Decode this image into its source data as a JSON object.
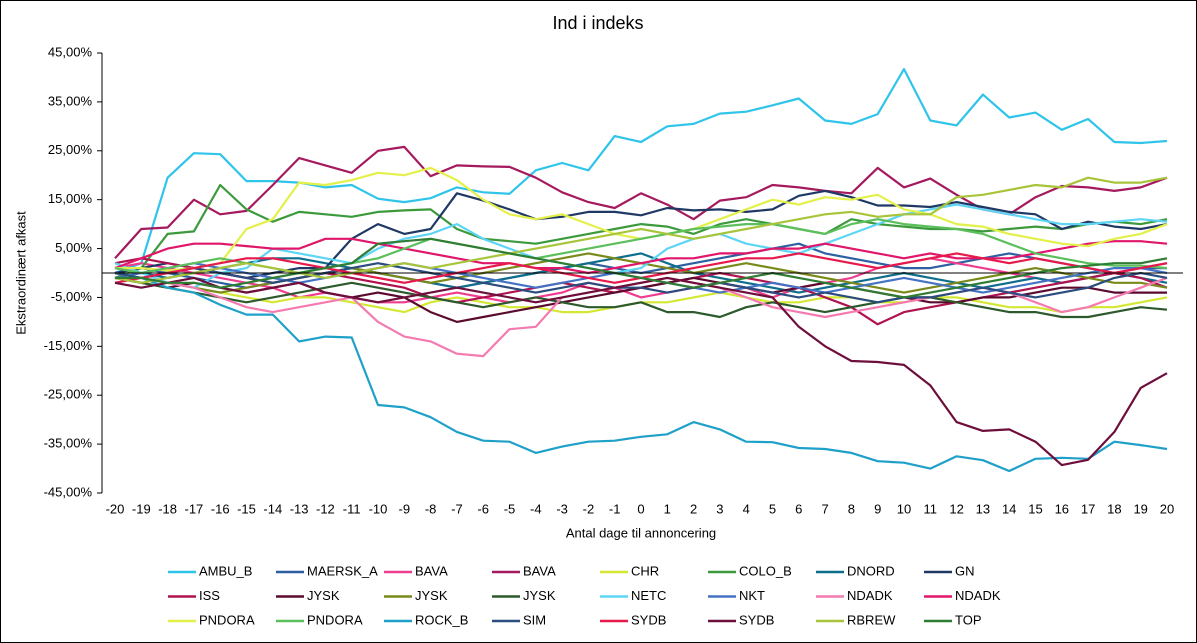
{
  "chart_data": {
    "type": "line",
    "title": "Ind i indeks",
    "x_label": "Antal dage til annoncering",
    "y_label": "Ekstraordinært afkast",
    "x": [
      -20,
      -19,
      -18,
      -17,
      -16,
      -15,
      -14,
      -13,
      -12,
      -11,
      -10,
      -9,
      -8,
      -7,
      -6,
      -5,
      -4,
      -3,
      -2,
      -1,
      0,
      1,
      2,
      3,
      4,
      5,
      6,
      7,
      8,
      9,
      10,
      11,
      12,
      13,
      14,
      15,
      16,
      17,
      18,
      19,
      20
    ],
    "xlim": [
      -20,
      20
    ],
    "ylim": [
      -45,
      45
    ],
    "yticks": [
      {
        "value": 45,
        "label": "45,00%"
      },
      {
        "value": 35,
        "label": "35,00%"
      },
      {
        "value": 25,
        "label": "25,00%"
      },
      {
        "value": 15,
        "label": "15,00%"
      },
      {
        "value": 5,
        "label": "5,00%"
      },
      {
        "value": -5,
        "label": "-5,00%"
      },
      {
        "value": -15,
        "label": "-15,00%"
      },
      {
        "value": -25,
        "label": "-25,00%"
      },
      {
        "value": -35,
        "label": "-35,00%"
      },
      {
        "value": -45,
        "label": "-45,00%"
      }
    ],
    "series": [
      {
        "name": "AMBU_B",
        "color": "#2fc4ea",
        "values": [
          0,
          2,
          19.5,
          24.5,
          24.3,
          18.8,
          18.8,
          18.5,
          17.5,
          18,
          15.2,
          14.5,
          15.3,
          17.5,
          16.5,
          16.2,
          21,
          22.5,
          21,
          28,
          26.8,
          30,
          30.5,
          32.6,
          33,
          34.3,
          35.7,
          31.2,
          30.5,
          32.5,
          41.7,
          31.2,
          30.2,
          36.5,
          31.8,
          32.8,
          29.3,
          31.5,
          26.8,
          26.6,
          27
        ]
      },
      {
        "name": "MAERSK_A",
        "color": "#2e5fa0",
        "values": [
          0,
          1,
          0,
          -1,
          -2,
          -3,
          -2,
          -1,
          0,
          1,
          0,
          -1,
          -2,
          -3,
          -2,
          -1,
          0,
          1,
          2,
          1,
          0,
          1,
          2,
          3,
          4,
          5,
          6,
          4,
          3,
          2,
          1,
          1,
          2,
          3,
          4,
          3,
          2,
          1,
          0,
          1,
          1
        ]
      },
      {
        "name": "BAVA",
        "color": "#ee3d8f",
        "values": [
          1,
          2,
          1,
          0,
          -1,
          -2,
          -3,
          -5,
          -4,
          -5,
          -6,
          -6,
          -5,
          -4,
          -5,
          -6,
          -5,
          -4,
          -2,
          -3,
          -5,
          -4,
          -3,
          -2,
          -3,
          -5,
          -3,
          -2,
          -1,
          1,
          2,
          3,
          2,
          1,
          0,
          -1,
          -2,
          -1,
          0,
          1,
          2
        ]
      },
      {
        "name": "BAVA",
        "color": "#a5195e",
        "values": [
          3,
          9,
          9.3,
          15,
          12,
          12.7,
          18,
          23.5,
          22,
          20.5,
          25,
          25.8,
          19.8,
          22,
          21.8,
          21.7,
          19.5,
          16.5,
          14.5,
          13.3,
          16.3,
          14,
          11,
          14.8,
          15.5,
          18,
          17.5,
          16.8,
          16.3,
          21.5,
          17.5,
          19.3,
          16,
          13,
          12,
          15.5,
          17.8,
          17.5,
          16.8,
          17.5,
          19.5
        ]
      },
      {
        "name": "CHR",
        "color": "#d4e833",
        "values": [
          0,
          -1,
          -2,
          -3,
          -4,
          -5,
          -6,
          -5,
          -5,
          -6,
          -7,
          -8,
          -6,
          -5,
          -6,
          -7,
          -7,
          -8,
          -8,
          -7,
          -6,
          -6,
          -5,
          -4,
          -5,
          -6,
          -6,
          -5,
          -5,
          -6,
          -6,
          -5,
          -5,
          -6,
          -7,
          -7,
          -8,
          -7,
          -7,
          -6,
          -5
        ]
      },
      {
        "name": "COLO_B",
        "color": "#3c9a3c",
        "values": [
          -1,
          1,
          8,
          8.5,
          18,
          13,
          10.5,
          12.5,
          12,
          11.5,
          12.5,
          12.8,
          13,
          9,
          7,
          6.5,
          6,
          7,
          8,
          9,
          10,
          9.5,
          8,
          10,
          11,
          10,
          9,
          8,
          11,
          10,
          9.5,
          9,
          9,
          8.5,
          9,
          9.5,
          9,
          10,
          10.5,
          10,
          11
        ]
      },
      {
        "name": "DNORD",
        "color": "#0f6e8c",
        "values": [
          1,
          0,
          -1,
          0,
          1,
          2,
          3,
          3,
          2,
          1,
          0,
          -1,
          -2,
          -3,
          -2,
          -1,
          0,
          1,
          2,
          3,
          4,
          2,
          0,
          -1,
          -2,
          -3,
          -4,
          -3,
          -2,
          -1,
          0,
          -1,
          -2,
          -3,
          -2,
          -1,
          -2,
          -1,
          0,
          -1,
          -2
        ]
      },
      {
        "name": "GN",
        "color": "#1f3864",
        "values": [
          0,
          1,
          2,
          1,
          0,
          -1,
          0,
          1,
          1,
          7,
          10,
          8,
          9,
          16.3,
          14.8,
          13,
          11,
          11.5,
          12.5,
          12.5,
          11.8,
          13.3,
          12.8,
          13,
          12.5,
          13,
          15.8,
          16.8,
          15.5,
          13.8,
          13.8,
          13.5,
          14.5,
          13.5,
          12.5,
          12,
          9,
          10.5,
          9.5,
          9,
          10
        ]
      },
      {
        "name": "ISS",
        "color": "#b0124f",
        "values": [
          2,
          3,
          2,
          1,
          0,
          -1,
          -2,
          -1,
          0,
          -1,
          -2,
          -3,
          -5,
          -6,
          -5,
          -4,
          -3,
          -2,
          -3,
          -4,
          -3,
          -2,
          -1,
          0,
          -1,
          -2,
          -3,
          -5,
          -7,
          -10.5,
          -8,
          -7,
          -6,
          -5,
          -4,
          -3,
          -2,
          -1,
          0,
          -1,
          -3
        ]
      },
      {
        "name": "JYSK",
        "color": "#5a0a2e",
        "values": [
          -1,
          -2,
          -3,
          -2,
          -3,
          -4,
          -3,
          -2,
          -4,
          -5,
          -4,
          -5,
          -8,
          -10,
          -9,
          -8,
          -7,
          -6,
          -5,
          -4,
          -3,
          -2,
          -1,
          -2,
          -3,
          -4,
          -3,
          -2,
          -3,
          -4,
          -5,
          -6,
          -6,
          -5,
          -5,
          -4,
          -3,
          -3,
          -4,
          -4,
          -4
        ]
      },
      {
        "name": "JYSK",
        "color": "#7a8a1a",
        "values": [
          0,
          -1,
          -2,
          -3,
          -4,
          -3,
          -2,
          -1,
          0,
          1,
          0,
          -1,
          -2,
          -1,
          0,
          1,
          2,
          3,
          4,
          3,
          2,
          1,
          0,
          1,
          2,
          1,
          0,
          -1,
          -2,
          -3,
          -4,
          -3,
          -2,
          -1,
          0,
          1,
          0,
          -1,
          -2,
          -2,
          -3
        ]
      },
      {
        "name": "JYSK",
        "color": "#2c5a2c",
        "values": [
          -1,
          -2,
          -3,
          -4,
          -5,
          -6,
          -5,
          -4,
          -3,
          -2,
          -3,
          -4,
          -5,
          -6,
          -7,
          -6,
          -5,
          -6,
          -7,
          -7,
          -6,
          -8,
          -8,
          -9,
          -7,
          -6,
          -7,
          -8,
          -7,
          -6,
          -5,
          -5,
          -6,
          -7,
          -8,
          -8,
          -9,
          -9,
          -8,
          -7,
          -7.5
        ]
      },
      {
        "name": "NETC",
        "color": "#5dd5f5",
        "values": [
          2,
          0,
          -2,
          -3,
          0,
          1,
          5,
          4,
          3,
          2,
          5,
          7,
          8,
          10,
          7,
          5,
          3,
          2,
          1,
          0,
          1,
          5,
          7,
          8,
          6,
          5,
          4,
          6,
          8,
          10,
          12,
          13,
          14,
          13,
          12,
          11,
          10,
          10,
          10.5,
          11,
          10.5
        ]
      },
      {
        "name": "NKT",
        "color": "#4472c4",
        "values": [
          -1,
          0,
          1,
          2,
          1,
          0,
          -1,
          -2,
          -1,
          0,
          1,
          2,
          1,
          0,
          -1,
          -2,
          -3,
          -2,
          -1,
          0,
          -1,
          -2,
          -3,
          -4,
          -3,
          -2,
          -3,
          -4,
          -3,
          -2,
          -1,
          -2,
          -3,
          -4,
          -3,
          -2,
          -1,
          0,
          1,
          1,
          0
        ]
      },
      {
        "name": "NDADK",
        "color": "#f47ab0",
        "values": [
          0,
          -1,
          -2,
          -3,
          -5,
          -7,
          -8,
          -7,
          -6,
          -5,
          -10,
          -13,
          -14,
          -16.5,
          -17,
          -11.5,
          -11,
          -5,
          -4,
          -3,
          -2,
          -1,
          -2,
          -3,
          -5,
          -7,
          -8,
          -9,
          -8,
          -7,
          -6,
          -5,
          -4,
          -3,
          -4,
          -6,
          -8,
          -7,
          -5,
          -3,
          -1
        ]
      },
      {
        "name": "NDADK",
        "color": "#e0166b",
        "values": [
          1,
          3,
          5,
          6,
          6,
          5.5,
          5,
          5,
          7,
          7,
          6,
          5,
          4,
          3,
          2,
          2,
          1,
          1,
          0,
          1,
          2,
          3,
          3,
          4,
          4,
          5,
          5,
          6,
          5,
          4,
          3,
          4,
          3,
          3,
          3,
          4,
          5,
          6,
          6.5,
          6.5,
          6
        ]
      },
      {
        "name": "PNDORA",
        "color": "#e4f04a",
        "values": [
          1,
          1,
          0.5,
          1,
          2,
          9,
          11,
          18.5,
          18,
          19,
          20.5,
          20,
          21.5,
          19,
          15,
          12,
          11,
          12,
          10,
          8,
          7,
          8,
          9,
          11,
          13,
          15,
          14,
          15.5,
          15,
          16,
          13,
          12,
          10,
          9.5,
          8,
          7,
          6,
          5.5,
          7,
          8,
          10
        ]
      },
      {
        "name": "PNDORA",
        "color": "#5cbf5c",
        "values": [
          1,
          0,
          1,
          2,
          3,
          2,
          1,
          0,
          1,
          2,
          3,
          5,
          7,
          6,
          5,
          4,
          3,
          4,
          5,
          6,
          7,
          8,
          9,
          9.5,
          10,
          10,
          9,
          8,
          10,
          11,
          10,
          9.5,
          9,
          8,
          6,
          4,
          3,
          2,
          1.5,
          1.5,
          1
        ]
      },
      {
        "name": "ROCK_B",
        "color": "#1fa0c8",
        "values": [
          0,
          -1,
          -3,
          -4,
          -6.5,
          -8.5,
          -8.5,
          -14,
          -13,
          -13.2,
          -27,
          -27.5,
          -29.5,
          -32.5,
          -34.3,
          -34.5,
          -36.8,
          -35.5,
          -34.5,
          -34.3,
          -33.5,
          -33,
          -30.5,
          -32,
          -34.5,
          -34.6,
          -35.8,
          -36,
          -36.8,
          -38.5,
          -38.8,
          -40,
          -37.5,
          -38.3,
          -40.5,
          -38,
          -37.8,
          -38,
          -34.5,
          -35.2,
          -36
        ]
      },
      {
        "name": "SIM",
        "color": "#2b4c7e",
        "values": [
          0,
          -1,
          0,
          1,
          0,
          -1,
          -2,
          -1,
          0,
          1,
          2,
          1,
          0,
          -1,
          -2,
          -3,
          -4,
          -3,
          -2,
          -3,
          -3,
          -4,
          -3,
          -2,
          -3,
          -4,
          -5,
          -4,
          -5,
          -6,
          -5,
          -5,
          -4,
          -3,
          -4,
          -5,
          -4,
          -3,
          -1,
          0,
          -1
        ]
      },
      {
        "name": "SYDB",
        "color": "#e6194b",
        "values": [
          -2,
          -1,
          0,
          1,
          2,
          3,
          3,
          2,
          1,
          0,
          -1,
          -2,
          -1,
          0,
          1,
          2,
          1,
          0,
          -1,
          -2,
          -1,
          0,
          1,
          2,
          3,
          3,
          4,
          3,
          2,
          1,
          2,
          3,
          4,
          3,
          2,
          3,
          2,
          1,
          0,
          1,
          2
        ]
      },
      {
        "name": "SYDB",
        "color": "#6d0e3b",
        "values": [
          -2,
          -3,
          -2,
          -1,
          -3,
          -4,
          -3,
          -2,
          -4,
          -5,
          -6,
          -5,
          -4,
          -3,
          -4,
          -5,
          -6,
          -5,
          -4,
          -3,
          -2,
          -1,
          -2,
          -3,
          -4,
          -5,
          -11,
          -15,
          -18,
          -18.2,
          -18.8,
          -23,
          -30.5,
          -32.3,
          -32,
          -34.5,
          -39.3,
          -38.2,
          -32.5,
          -23.5,
          -20.5
        ]
      },
      {
        "name": "RBREW",
        "color": "#a8c43a",
        "values": [
          -1,
          -2,
          -1,
          0,
          1,
          2,
          1,
          0,
          -1,
          0,
          1,
          2,
          1,
          2,
          3,
          4,
          5,
          6,
          7,
          8,
          9,
          8,
          7,
          8,
          9,
          10,
          11,
          12,
          12.5,
          11.5,
          12,
          12,
          15.5,
          16,
          17,
          18,
          17.5,
          19.5,
          18.5,
          18.5,
          19.5
        ]
      },
      {
        "name": "TOP",
        "color": "#2e7d32",
        "values": [
          -1,
          -1,
          -2,
          -2,
          -3,
          -2,
          -1,
          0,
          1,
          2,
          6,
          6.5,
          7,
          6,
          5,
          4,
          3,
          2,
          1,
          0,
          -1,
          -2,
          -3,
          -2,
          -1,
          0,
          -1,
          -2,
          -3,
          -4,
          -5,
          -4,
          -3,
          -2,
          -1,
          0,
          1,
          1.5,
          2,
          2,
          3
        ]
      }
    ]
  }
}
